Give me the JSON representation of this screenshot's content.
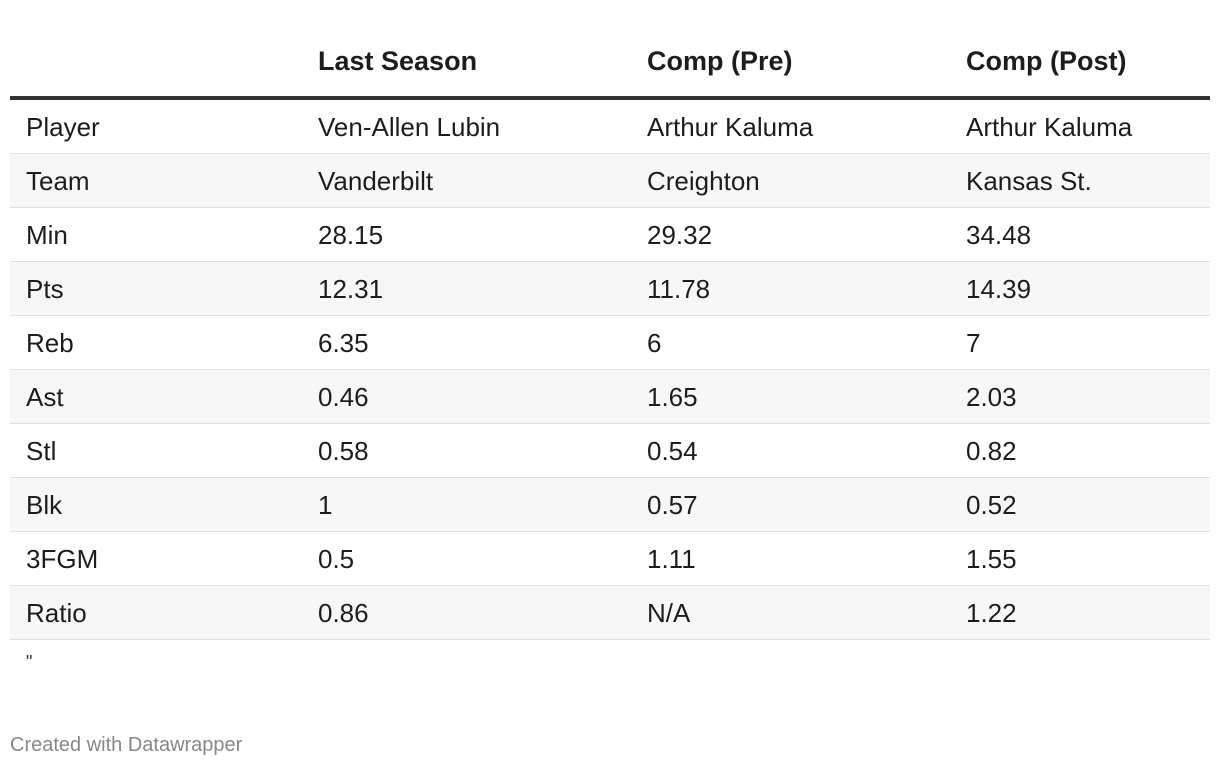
{
  "table": {
    "columns": [
      "Last Season",
      "Comp (Pre)",
      "Comp (Post)"
    ],
    "rows": [
      [
        "Player",
        "Ven-Allen Lubin",
        "Arthur Kaluma",
        "Arthur Kaluma"
      ],
      [
        "Team",
        "Vanderbilt",
        "Creighton",
        "Kansas St."
      ],
      [
        "Min",
        28.15,
        29.32,
        34.48
      ],
      [
        "Pts",
        12.31,
        11.78,
        14.39
      ],
      [
        "Reb",
        6.35,
        6,
        7
      ],
      [
        "Ast",
        0.46,
        1.65,
        2.03
      ],
      [
        "Stl",
        0.58,
        0.54,
        0.82
      ],
      [
        "Blk",
        1,
        0.57,
        0.52
      ],
      [
        "3FGM",
        0.5,
        1.11,
        1.55
      ],
      [
        "Ratio",
        0.86,
        "N/A",
        1.22
      ]
    ]
  },
  "note": "\"",
  "footer": "Created with Datawrapper"
}
